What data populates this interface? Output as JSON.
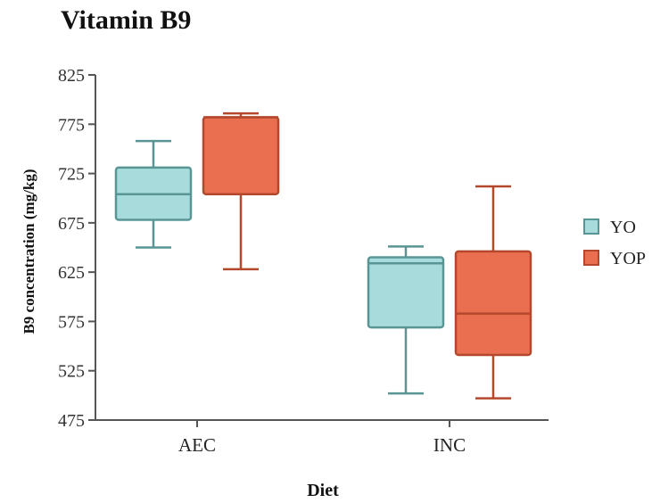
{
  "chart_data": {
    "type": "box",
    "title": "Vitamin B9",
    "xlabel": "Diet",
    "ylabel": "B9 concentration (mg/kg)",
    "ylim": [
      475,
      825
    ],
    "yticks": [
      475,
      525,
      575,
      625,
      675,
      725,
      775,
      825
    ],
    "categories": [
      "AEC",
      "INC"
    ],
    "legend_position": "right",
    "grid": false,
    "series": [
      {
        "name": "YO",
        "fill": "#a8dcdc",
        "stroke": "#5a9595",
        "boxes": [
          {
            "min": 650,
            "q1": 678,
            "median": 704,
            "q3": 731,
            "max": 758
          },
          {
            "min": 502,
            "q1": 569,
            "median": 634,
            "q3": 640,
            "max": 651
          }
        ]
      },
      {
        "name": "YOP",
        "fill": "#ea6f50",
        "stroke": "#b4482c",
        "boxes": [
          {
            "min": 628,
            "q1": 704,
            "median": 782,
            "q3": 782,
            "max": 786
          },
          {
            "min": 497,
            "q1": 541,
            "median": 583,
            "q3": 646,
            "max": 712
          }
        ]
      }
    ]
  }
}
